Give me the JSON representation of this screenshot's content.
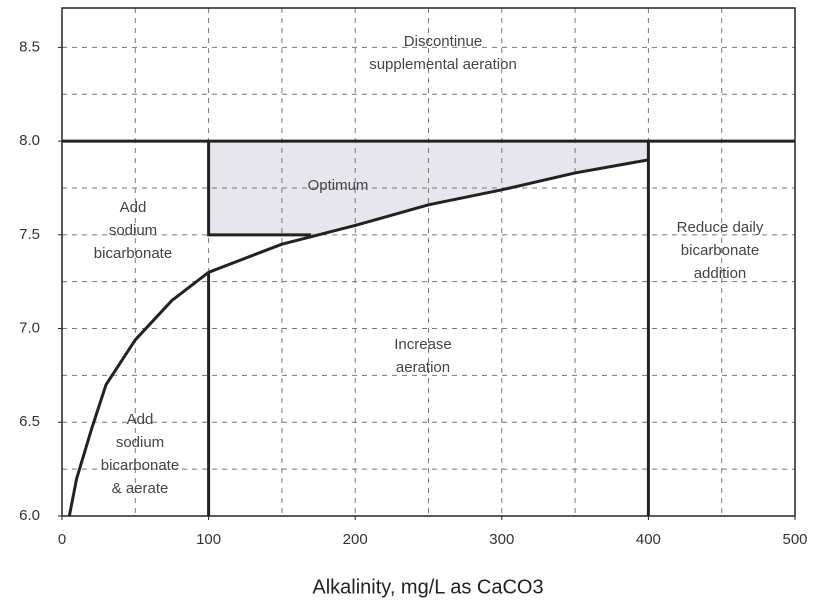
{
  "chart_data": {
    "type": "line",
    "x_label": "Alkalinity, mg/L as CaCO3",
    "xlim": [
      0,
      500
    ],
    "ylim": [
      6.0,
      8.71
    ],
    "xticks": [
      0,
      100,
      200,
      300,
      400,
      500
    ],
    "yticks": [
      {
        "value": 6,
        "label": "6.0"
      },
      6.5,
      {
        "value": 7,
        "label": "7.0"
      },
      7.5,
      {
        "value": 8,
        "label": "8.0"
      },
      8.5
    ],
    "xgrid": [
      50,
      100,
      150,
      200,
      250,
      300,
      350,
      400,
      450
    ],
    "ygrid": [
      6.25,
      6.5,
      6.75,
      7,
      7.25,
      7.5,
      7.75,
      8,
      8.25,
      8.5
    ],
    "grid": true,
    "curve": {
      "x": [
        5,
        10,
        20,
        30,
        50,
        75,
        100,
        150,
        200,
        250,
        300,
        350,
        400
      ],
      "y": [
        6.0,
        6.2,
        6.46,
        6.7,
        6.94,
        7.15,
        7.3,
        7.45,
        7.55,
        7.66,
        7.74,
        7.83,
        7.9
      ]
    },
    "boundaries": [
      {
        "x": [
          0,
          500
        ],
        "y": [
          8.0,
          8.0
        ]
      },
      {
        "x": [
          100,
          100
        ],
        "y": [
          6.0,
          7.3
        ]
      },
      {
        "x": [
          100,
          100,
          170
        ],
        "y": [
          8.0,
          7.5,
          7.5
        ]
      },
      {
        "x": [
          400,
          400
        ],
        "y": [
          6.0,
          8.0
        ]
      }
    ],
    "optimum_area": {
      "x": [
        100,
        400,
        400,
        350,
        300,
        250,
        200,
        170,
        100
      ],
      "y": [
        8.0,
        8.0,
        7.9,
        7.83,
        7.74,
        7.66,
        7.55,
        7.5,
        7.5
      ],
      "color": "#e6e6ec"
    },
    "regions": [
      {
        "lines": [
          "Discontinue",
          "supplemental aeration"
        ]
      },
      {
        "lines": [
          "Optimum"
        ]
      },
      {
        "lines": [
          "Add",
          "sodium",
          "bicarbonate"
        ]
      },
      {
        "lines": [
          "Reduce daily",
          "bicarbonate",
          "addition"
        ]
      },
      {
        "lines": [
          "Increase",
          "aeration"
        ]
      },
      {
        "lines": [
          "Add",
          "sodium",
          "bicarbonate",
          "& aerate"
        ]
      }
    ]
  }
}
